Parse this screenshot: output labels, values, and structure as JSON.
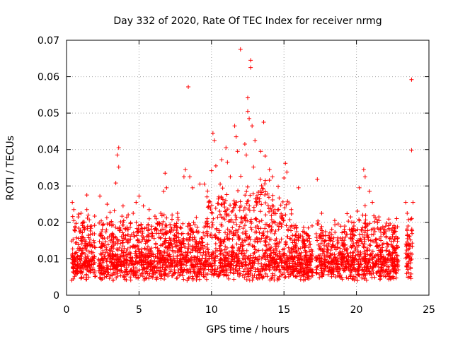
{
  "chart_data": {
    "type": "scatter",
    "title": "Day 332 of 2020, Rate Of TEC Index for receiver nrmg",
    "xlabel": "GPS time / hours",
    "ylabel": "ROTI / TECUs",
    "xlim": [
      0,
      25
    ],
    "ylim": [
      0,
      0.07
    ],
    "xticks": [
      "0",
      "5",
      "10",
      "15",
      "20",
      "25"
    ],
    "yticks": [
      "0",
      "0.01",
      "0.02",
      "0.03",
      "0.04",
      "0.05",
      "0.06",
      "0.07"
    ],
    "grid": true,
    "marker": "+",
    "color": "#ff0000",
    "series": [
      {
        "points": [
          [
            0.4,
            0.0255
          ],
          [
            0.5,
            0.0235
          ],
          [
            0.5,
            0.0205
          ],
          [
            0.6,
            0.0185
          ],
          [
            0.8,
            0.0215
          ],
          [
            1.0,
            0.0225
          ],
          [
            1.2,
            0.0185
          ],
          [
            1.4,
            0.0235
          ],
          [
            1.4,
            0.0275
          ],
          [
            2.3,
            0.0272
          ],
          [
            2.5,
            0.0192
          ],
          [
            2.8,
            0.025
          ],
          [
            3.0,
            0.0228
          ],
          [
            3.3,
            0.0232
          ],
          [
            3.4,
            0.0308
          ],
          [
            3.5,
            0.0385
          ],
          [
            3.6,
            0.0405
          ],
          [
            3.6,
            0.0352
          ],
          [
            3.9,
            0.0245
          ],
          [
            4.6,
            0.0225
          ],
          [
            4.8,
            0.0255
          ],
          [
            5.0,
            0.0272
          ],
          [
            5.3,
            0.0245
          ],
          [
            5.7,
            0.0235
          ],
          [
            6.5,
            0.0225
          ],
          [
            6.7,
            0.0285
          ],
          [
            6.8,
            0.0335
          ],
          [
            6.9,
            0.0295
          ],
          [
            8.1,
            0.0325
          ],
          [
            8.2,
            0.0345
          ],
          [
            8.4,
            0.0572
          ],
          [
            8.5,
            0.0325
          ],
          [
            8.7,
            0.0295
          ],
          [
            9.2,
            0.0305
          ],
          [
            9.5,
            0.0305
          ],
          [
            10.0,
            0.0342
          ],
          [
            10.1,
            0.0445
          ],
          [
            10.2,
            0.0425
          ],
          [
            10.3,
            0.0355
          ],
          [
            10.6,
            0.0305
          ],
          [
            10.7,
            0.0372
          ],
          [
            11.0,
            0.0405
          ],
          [
            11.1,
            0.0365
          ],
          [
            11.3,
            0.0325
          ],
          [
            11.6,
            0.0465
          ],
          [
            11.7,
            0.0435
          ],
          [
            11.8,
            0.0395
          ],
          [
            12.0,
            0.0675
          ],
          [
            12.3,
            0.0415
          ],
          [
            12.4,
            0.0385
          ],
          [
            12.5,
            0.0542
          ],
          [
            12.5,
            0.0505
          ],
          [
            12.6,
            0.0485
          ],
          [
            12.7,
            0.0645
          ],
          [
            12.7,
            0.0625
          ],
          [
            12.8,
            0.0465
          ],
          [
            12.9,
            0.0352
          ],
          [
            13.0,
            0.0425
          ],
          [
            13.4,
            0.0395
          ],
          [
            13.6,
            0.0475
          ],
          [
            13.7,
            0.0382
          ],
          [
            14.0,
            0.0345
          ],
          [
            14.2,
            0.0325
          ],
          [
            14.6,
            0.0298
          ],
          [
            15.0,
            0.0322
          ],
          [
            15.1,
            0.0362
          ],
          [
            15.2,
            0.0338
          ],
          [
            15.5,
            0.0235
          ],
          [
            16.0,
            0.0295
          ],
          [
            17.3,
            0.0318
          ],
          [
            17.6,
            0.0225
          ],
          [
            18.5,
            0.0205
          ],
          [
            19.6,
            0.0215
          ],
          [
            20.2,
            0.0295
          ],
          [
            20.5,
            0.0345
          ],
          [
            20.6,
            0.0325
          ],
          [
            20.9,
            0.0285
          ],
          [
            21.1,
            0.0255
          ],
          [
            21.2,
            0.0218
          ],
          [
            22.5,
            0.0185
          ],
          [
            23.4,
            0.0255
          ],
          [
            23.5,
            0.0225
          ],
          [
            23.8,
            0.0592
          ],
          [
            23.8,
            0.0398
          ],
          [
            23.9,
            0.0255
          ]
        ]
      }
    ]
  }
}
